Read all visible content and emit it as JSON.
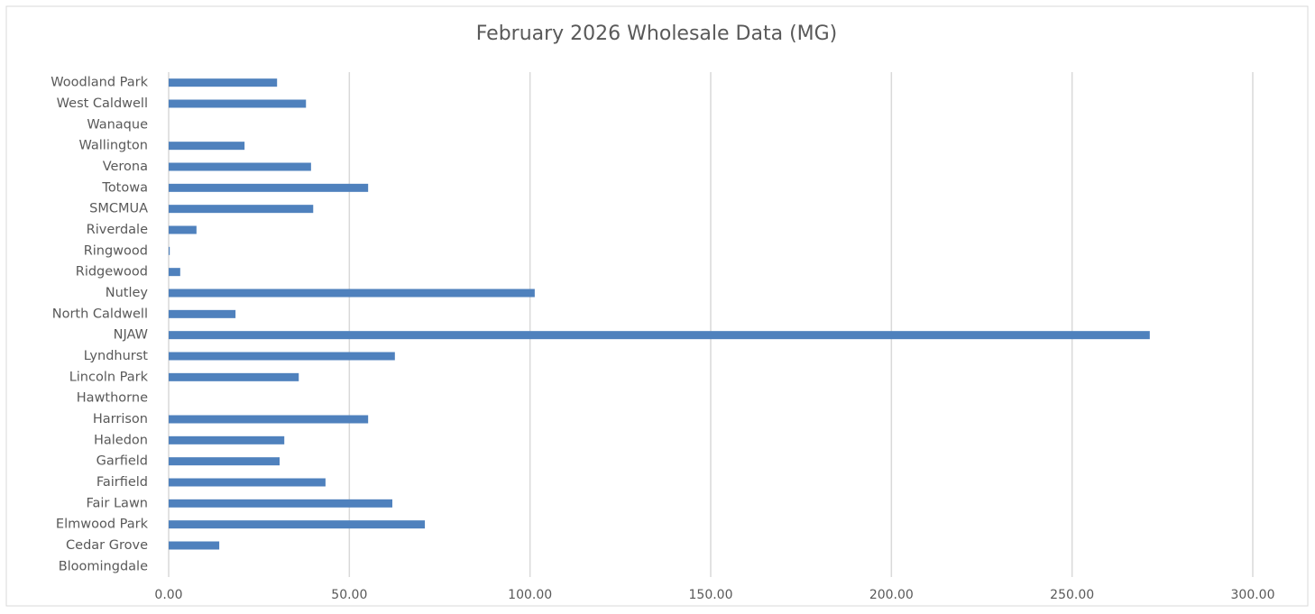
{
  "chart_data": {
    "type": "barh",
    "title": "February 2026 Wholesale Data (MG)",
    "categories": [
      "Bloomingdale",
      "Cedar Grove",
      "Elmwood Park",
      "Fair Lawn",
      "Fairfield",
      "Garfield",
      "Haledon",
      "Harrison",
      "Hawthorne",
      "Lincoln Park",
      "Lyndhurst",
      "NJAW",
      "North Caldwell",
      "Nutley",
      "Ridgewood",
      "Ringwood",
      "Riverdale",
      "SMCMUA",
      "Totowa",
      "Verona",
      "Wallington",
      "Wanaque",
      "West Caldwell",
      "Woodland Park"
    ],
    "values": [
      0,
      14,
      70.9,
      61.9,
      43.4,
      30.7,
      32,
      55.2,
      0,
      36,
      62.6,
      271.5,
      18.5,
      101.3,
      3.2,
      0.3,
      7.7,
      40,
      55.2,
      39.4,
      21,
      0,
      38,
      30
    ],
    "color": "#4f81bd",
    "xlim": [
      0,
      300
    ],
    "xticks": [
      {
        "value": 0,
        "label": "0.00"
      },
      {
        "value": 50,
        "label": "50.00"
      },
      {
        "value": 100,
        "label": "100.00"
      },
      {
        "value": 150,
        "label": "150.00"
      },
      {
        "value": 200,
        "label": "200.00"
      },
      {
        "value": 250,
        "label": "250.00"
      },
      {
        "value": 300,
        "label": "300.00"
      }
    ],
    "grid": true
  }
}
